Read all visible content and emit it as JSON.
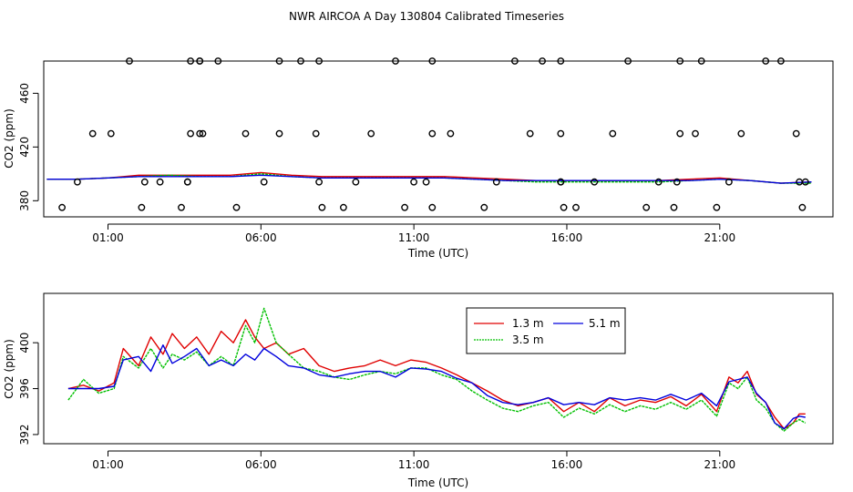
{
  "page_title": "NWR AIRCOA A  Day 130804  Calibrated Timeseries",
  "colors": {
    "1.3 m": "#e00000",
    "3.5 m": "#00c000",
    "5.1 m": "#0000dd",
    "axes": "#000000",
    "markers": "#000000"
  },
  "chart_data": [
    {
      "type": "scatter",
      "xlabel": "Time (UTC)",
      "ylabel": "CO2 (ppm)",
      "x_tick_labels": [
        "01:00",
        "06:00",
        "11:00",
        "16:00",
        "21:00"
      ],
      "x_ticks_hours": [
        1,
        6,
        11,
        16,
        21
      ],
      "y_ticks": [
        380,
        420,
        460
      ],
      "xlim_hours": [
        -1.1,
        24.7
      ],
      "ylim": [
        368,
        484
      ],
      "grid": false,
      "markers": {
        "x_hours": [
          -0.5,
          0.0,
          0.5,
          1.1,
          2.1,
          2.2,
          2.7,
          3.4,
          3.6,
          3.7,
          4.0,
          4.0,
          4.1,
          4.6,
          5.2,
          5.5,
          6.1,
          6.6,
          7.3,
          7.8,
          7.9,
          8.0,
          8.7,
          9.1,
          9.6,
          10.4,
          10.7,
          11.0,
          11.4,
          11.6,
          12.2,
          13.3,
          13.7,
          14.3,
          14.8,
          15.2,
          15.8,
          15.8,
          15.9,
          16.3,
          16.9,
          17.5,
          18.0,
          18.6,
          19.0,
          19.5,
          19.6,
          19.7,
          20.2,
          20.4,
          20.9,
          21.3,
          21.7,
          22.5,
          23.0,
          23.5,
          23.6,
          23.7,
          23.8
        ]
      },
      "series": [
        {
          "name": "1.3 m",
          "x_hours": [
            -1,
            0,
            1,
            2,
            3,
            4,
            5,
            6,
            7,
            8,
            9,
            10,
            11,
            12,
            13,
            14,
            15,
            16,
            17,
            18,
            19,
            20,
            21,
            22,
            23,
            24
          ],
          "values": [
            396,
            396,
            397,
            399,
            399,
            399,
            399,
            401,
            399,
            398,
            398,
            398,
            398,
            398,
            397,
            396,
            395,
            395,
            395,
            395,
            395,
            396,
            397,
            395,
            393,
            394
          ]
        },
        {
          "name": "3.5 m",
          "x_hours": [
            -1,
            0,
            1,
            2,
            3,
            4,
            5,
            6,
            7,
            8,
            9,
            10,
            11,
            12,
            13,
            14,
            15,
            16,
            17,
            18,
            19,
            20,
            21,
            22,
            23,
            24
          ],
          "values": [
            396,
            396,
            397,
            398,
            399,
            398,
            398,
            400,
            398,
            397,
            397,
            397,
            397,
            397,
            396,
            395,
            394,
            394,
            394,
            394,
            394,
            395,
            396,
            395,
            393,
            393
          ]
        },
        {
          "name": "5.1 m",
          "x_hours": [
            -1,
            0,
            1,
            2,
            3,
            4,
            5,
            6,
            7,
            8,
            9,
            10,
            11,
            12,
            13,
            14,
            15,
            16,
            17,
            18,
            19,
            20,
            21,
            22,
            23,
            24
          ],
          "values": [
            396,
            396,
            397,
            398,
            398,
            398,
            398,
            399,
            398,
            397,
            397,
            397,
            397,
            397,
            396,
            395,
            395,
            395,
            395,
            395,
            395,
            395,
            396,
            395,
            393,
            394
          ]
        }
      ]
    },
    {
      "type": "line",
      "xlabel": "Time (UTC)",
      "ylabel": "CO2 (ppm)",
      "x_tick_labels": [
        "01:00",
        "06:00",
        "11:00",
        "16:00",
        "21:00"
      ],
      "x_ticks_hours": [
        1,
        6,
        11,
        16,
        21
      ],
      "y_ticks": [
        392,
        396,
        400
      ],
      "xlim_hours": [
        -1.1,
        24.7
      ],
      "ylim": [
        391.2,
        404.3
      ],
      "grid": false,
      "legend_position": "top-center",
      "legend_order": [
        "1.3 m",
        "5.1 m",
        "3.5 m"
      ],
      "series": [
        {
          "name": "1.3 m",
          "x_hours": [
            -0.3,
            0.2,
            0.7,
            1.2,
            1.5,
            2.0,
            2.4,
            2.8,
            3.1,
            3.5,
            3.9,
            4.3,
            4.7,
            5.1,
            5.5,
            5.8,
            6.1,
            6.5,
            6.9,
            7.4,
            7.9,
            8.4,
            8.9,
            9.4,
            9.9,
            10.4,
            10.9,
            11.4,
            11.9,
            12.4,
            12.9,
            13.4,
            13.9,
            14.4,
            14.9,
            15.4,
            15.9,
            16.4,
            16.9,
            17.4,
            17.9,
            18.4,
            18.9,
            19.4,
            19.9,
            20.4,
            20.9,
            21.3,
            21.6,
            21.9,
            22.2,
            22.5,
            22.8,
            23.1,
            23.4,
            23.6,
            23.8
          ],
          "values": [
            396.0,
            396.3,
            395.8,
            396.5,
            399.5,
            398.0,
            400.5,
            399.0,
            400.8,
            399.5,
            400.5,
            399.0,
            401.0,
            400.0,
            402.0,
            400.5,
            399.5,
            400.0,
            399.0,
            399.5,
            398.0,
            397.5,
            397.8,
            398.0,
            398.5,
            398.0,
            398.5,
            398.3,
            397.8,
            397.2,
            396.5,
            395.8,
            395.0,
            394.5,
            394.8,
            395.2,
            394.0,
            394.8,
            394.0,
            395.2,
            394.5,
            395.0,
            394.8,
            395.3,
            394.5,
            395.5,
            394.0,
            397.0,
            396.5,
            397.5,
            395.5,
            394.8,
            393.5,
            392.5,
            393.0,
            393.8,
            393.8
          ]
        },
        {
          "name": "3.5 m",
          "x_hours": [
            -0.3,
            0.2,
            0.7,
            1.2,
            1.5,
            2.0,
            2.4,
            2.8,
            3.1,
            3.5,
            3.9,
            4.3,
            4.7,
            5.1,
            5.5,
            5.8,
            6.1,
            6.5,
            6.9,
            7.4,
            7.9,
            8.4,
            8.9,
            9.4,
            9.9,
            10.4,
            10.9,
            11.4,
            11.9,
            12.4,
            12.9,
            13.4,
            13.9,
            14.4,
            14.9,
            15.4,
            15.9,
            16.4,
            16.9,
            17.4,
            17.9,
            18.4,
            18.9,
            19.4,
            19.9,
            20.4,
            20.9,
            21.3,
            21.6,
            21.9,
            22.2,
            22.5,
            22.8,
            23.1,
            23.4,
            23.6,
            23.8
          ],
          "values": [
            395.0,
            396.8,
            395.6,
            396.0,
            398.8,
            397.8,
            399.5,
            397.8,
            399.0,
            398.5,
            399.2,
            398.0,
            398.8,
            398.0,
            401.5,
            400.0,
            403.0,
            400.0,
            399.0,
            397.8,
            397.5,
            397.0,
            396.8,
            397.2,
            397.5,
            397.3,
            397.8,
            397.8,
            397.2,
            396.8,
            395.8,
            395.0,
            394.3,
            394.0,
            394.5,
            394.8,
            393.5,
            394.3,
            393.8,
            394.6,
            394.0,
            394.5,
            394.2,
            394.8,
            394.2,
            395.0,
            393.6,
            396.5,
            396.0,
            397.0,
            395.0,
            394.3,
            393.0,
            392.3,
            393.0,
            393.3,
            393.0
          ]
        },
        {
          "name": "5.1 m",
          "x_hours": [
            -0.3,
            0.2,
            0.7,
            1.2,
            1.5,
            2.0,
            2.4,
            2.8,
            3.1,
            3.5,
            3.9,
            4.3,
            4.7,
            5.1,
            5.5,
            5.8,
            6.1,
            6.5,
            6.9,
            7.4,
            7.9,
            8.4,
            8.9,
            9.4,
            9.9,
            10.4,
            10.9,
            11.4,
            11.9,
            12.4,
            12.9,
            13.4,
            13.9,
            14.4,
            14.9,
            15.4,
            15.9,
            16.4,
            16.9,
            17.4,
            17.9,
            18.4,
            18.9,
            19.4,
            19.9,
            20.4,
            20.9,
            21.3,
            21.6,
            21.9,
            22.2,
            22.5,
            22.8,
            23.1,
            23.4,
            23.6,
            23.8
          ],
          "values": [
            396.0,
            396.0,
            396.0,
            396.2,
            398.5,
            398.8,
            397.5,
            399.8,
            398.2,
            398.8,
            399.5,
            398.0,
            398.5,
            398.0,
            399.0,
            398.5,
            399.5,
            398.8,
            398.0,
            397.8,
            397.2,
            397.0,
            397.3,
            397.5,
            397.5,
            397.0,
            397.8,
            397.7,
            397.5,
            396.9,
            396.5,
            395.4,
            394.8,
            394.6,
            394.8,
            395.2,
            394.6,
            394.8,
            394.6,
            395.2,
            395.0,
            395.2,
            395.0,
            395.5,
            395.0,
            395.6,
            394.5,
            396.6,
            396.8,
            397.0,
            395.6,
            394.8,
            393.0,
            392.5,
            393.4,
            393.6,
            393.5
          ]
        }
      ]
    }
  ]
}
